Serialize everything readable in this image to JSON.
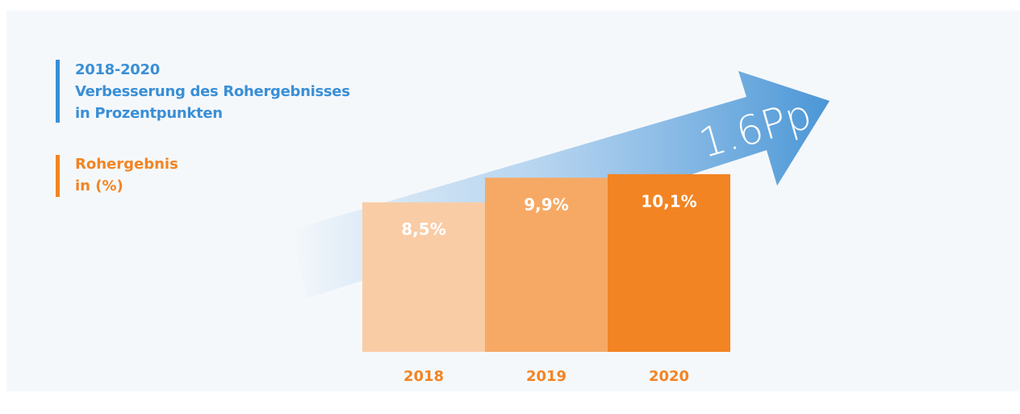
{
  "chart_data": {
    "type": "bar",
    "title": [
      "2018-2020",
      "Verbesserung des Rohergebnisses",
      "in Prozentpunkten"
    ],
    "title_color": "#3a8fd6",
    "subtitle": [
      "Rohergebnis",
      "in (%)"
    ],
    "subtitle_color": "#f38423",
    "annotation": "1.6Pp",
    "categories": [
      "2018",
      "2019",
      "2020"
    ],
    "values": [
      8.5,
      9.9,
      10.1
    ],
    "value_labels": [
      "8,5%",
      "9,9%",
      "10,1%"
    ],
    "colors": [
      "#f9cca6",
      "#f6a964",
      "#f38423"
    ]
  }
}
